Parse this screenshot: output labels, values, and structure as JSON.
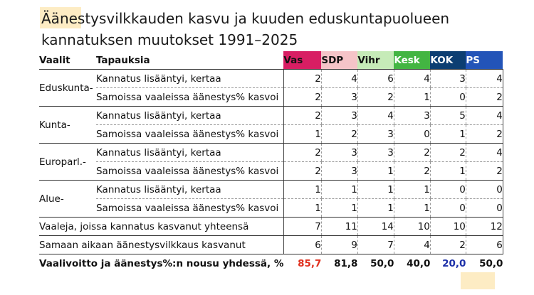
{
  "title": {
    "line1": "Äänestysvilkkauden kasvu ja kuuden eduskuntapuolueen",
    "line2": "kannatuksen muutokset 1991–2025"
  },
  "headers": {
    "vaalit": "Vaalit",
    "tapauksia": "Tapauksia",
    "parties": [
      "Vas",
      "SDP",
      "Vihr",
      "Kesk",
      "KOK",
      "PS"
    ]
  },
  "party_colors": {
    "Vas": "#d81e63",
    "SDP": "#f5c4c8",
    "Vihr": "#c6ebb8",
    "Kesk": "#43b542",
    "KOK": "#0c3e72",
    "PS": "#2354b8"
  },
  "groups": [
    {
      "name": "Eduskunta-",
      "rows": [
        {
          "label": "Kannatus lisääntyi, kertaa",
          "values": [
            "2",
            "4",
            "6",
            "4",
            "3",
            "4"
          ]
        },
        {
          "label": "Samoissa vaaleissa äänestys% kasvoi",
          "values": [
            "2",
            "3",
            "2",
            "1",
            "0",
            "2"
          ]
        }
      ]
    },
    {
      "name": "Kunta-",
      "rows": [
        {
          "label": "Kannatus lisääntyi, kertaa",
          "values": [
            "2",
            "3",
            "4",
            "3",
            "5",
            "4"
          ]
        },
        {
          "label": "Samoissa vaaleissa äänestys% kasvoi",
          "values": [
            "1",
            "2",
            "3",
            "0",
            "1",
            "2"
          ]
        }
      ]
    },
    {
      "name": "Europarl.-",
      "rows": [
        {
          "label": "Kannatus lisääntyi, kertaa",
          "values": [
            "2",
            "3",
            "3",
            "2",
            "2",
            "4"
          ]
        },
        {
          "label": "Samoissa vaaleissa äänestys% kasvoi",
          "values": [
            "2",
            "3",
            "1",
            "2",
            "1",
            "2"
          ]
        }
      ]
    },
    {
      "name": "Alue-",
      "rows": [
        {
          "label": "Kannatus lisääntyi, kertaa",
          "values": [
            "1",
            "1",
            "1",
            "1",
            "0",
            "0"
          ]
        },
        {
          "label": "Samoissa vaaleissa äänestys% kasvoi",
          "values": [
            "1",
            "1",
            "1",
            "1",
            "0",
            "0"
          ]
        }
      ]
    }
  ],
  "summary": [
    {
      "label": "Vaaleja, joissa kannatus kasvanut yhteensä",
      "values": [
        "7",
        "11",
        "14",
        "10",
        "10",
        "12"
      ]
    },
    {
      "label": "Samaan aikaan äänestysvilkkaus kasvanut",
      "values": [
        "6",
        "9",
        "7",
        "4",
        "2",
        "6"
      ]
    }
  ],
  "final": {
    "label": "Vaalivoitto ja äänestys%:n nousu yhdessä, %",
    "values": [
      "85,7",
      "81,8",
      "50,0",
      "40,0",
      "20,0",
      "50,0"
    ],
    "highlight_colors": {
      "max": "#e0301e",
      "min": "#1c2fa8"
    }
  }
}
